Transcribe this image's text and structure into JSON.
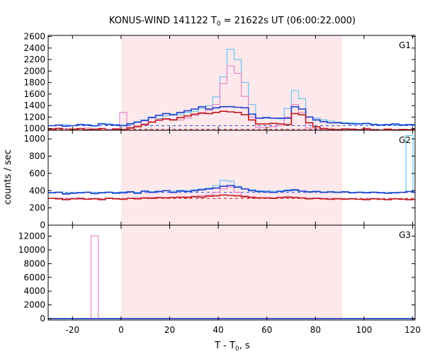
{
  "chart_data": {
    "type": "line",
    "title_main": "KONUS-WIND 141122 T",
    "title_sub": "0",
    "title_rest": " = 21622s UT (06:00:22.000)",
    "xlabel_main": "T - T",
    "xlabel_sub": "0",
    "xlabel_rest": ", s",
    "ylabel": "counts / sec",
    "xlim": [
      -30,
      121
    ],
    "x_ticks": [
      -20,
      0,
      20,
      40,
      60,
      80,
      100,
      120
    ],
    "highlight_interval": [
      0,
      91
    ],
    "colors": {
      "highlight": "#fde8ec",
      "cyan": "#5bc0eb",
      "pink": "#e27fbf",
      "blue": "#1c3fcf",
      "red": "#c01818",
      "dashed_blue": "#2a4fd6",
      "dashed_red": "#c01818"
    },
    "panels": [
      {
        "name": "G1",
        "ylim": [
          970,
          2620
        ],
        "y_ticks": [
          1000,
          1200,
          1400,
          1600,
          1800,
          2000,
          2200,
          2400,
          2600
        ],
        "bg_levels": {
          "blue": 1050,
          "red": 985
        },
        "bin_start": -30,
        "bin_width": 2.944,
        "series": [
          {
            "name": "cyan",
            "values": [
              1050,
              1060,
              1070,
              1050,
              1060,
              1070,
              1040,
              1090,
              1080,
              1070,
              1060,
              1090,
              1120,
              1150,
              1200,
              1180,
              1220,
              1250,
              1240,
              1280,
              1300,
              1350,
              1400,
              1550,
              1900,
              2380,
              2200,
              1800,
              1420,
              1180,
              1180,
              1180,
              1170,
              1350,
              1660,
              1520,
              1200,
              1180,
              1150,
              1130,
              1110,
              1100,
              1100,
              1090,
              1080,
              1080,
              1070,
              1060,
              1060,
              1070,
              1060,
              1070
            ]
          },
          {
            "name": "pink",
            "values": [
              1000,
              1010,
              1000,
              990,
              1000,
              1010,
              980,
              1000,
              990,
              1000,
              1280,
              1020,
              1050,
              1080,
              1120,
              1140,
              1160,
              1160,
              1150,
              1180,
              1230,
              1260,
              1320,
              1420,
              1780,
              2090,
              1960,
              1560,
              1200,
              1020,
              1020,
              1030,
              1050,
              1200,
              1420,
              1280,
              1010,
              1000,
              990,
              985,
              980,
              985,
              980,
              985,
              980,
              985,
              975,
              985,
              980,
              985,
              980,
              985
            ]
          },
          {
            "name": "blue",
            "values": [
              1050,
              1060,
              1040,
              1050,
              1070,
              1060,
              1050,
              1080,
              1070,
              1060,
              1050,
              1080,
              1110,
              1140,
              1190,
              1230,
              1260,
              1240,
              1280,
              1310,
              1340,
              1380,
              1340,
              1360,
              1380,
              1380,
              1370,
              1360,
              1250,
              1180,
              1190,
              1180,
              1180,
              1180,
              1380,
              1340,
              1200,
              1150,
              1120,
              1100,
              1100,
              1090,
              1080,
              1080,
              1090,
              1070,
              1060,
              1070,
              1080,
              1060,
              1070,
              1060
            ]
          },
          {
            "name": "red",
            "values": [
              990,
              1000,
              970,
              990,
              1000,
              980,
              990,
              1000,
              970,
              990,
              980,
              1010,
              1030,
              1070,
              1110,
              1150,
              1170,
              1150,
              1190,
              1220,
              1250,
              1270,
              1260,
              1280,
              1300,
              1290,
              1280,
              1240,
              1150,
              1080,
              1080,
              1090,
              1080,
              1070,
              1260,
              1240,
              1100,
              1030,
              1000,
              990,
              980,
              995,
              990,
              980,
              1000,
              980,
              970,
              990,
              975,
              985,
              980,
              990
            ]
          }
        ]
      },
      {
        "name": "G2",
        "ylim": [
          0,
          1100
        ],
        "y_ticks": [
          0,
          200,
          400,
          600,
          800,
          1000
        ],
        "bg_levels": {
          "blue": 380,
          "red": 310
        },
        "bin_start": -30,
        "bin_width": 2.944,
        "series": [
          {
            "name": "cyan",
            "values": [
              380,
              385,
              370,
              375,
              380,
              385,
              375,
              380,
              385,
              380,
              385,
              390,
              380,
              395,
              390,
              395,
              400,
              395,
              405,
              400,
              410,
              420,
              430,
              460,
              520,
              510,
              450,
              420,
              410,
              400,
              400,
              395,
              400,
              410,
              400,
              395,
              390,
              395,
              385,
              390,
              385,
              390,
              380,
              385,
              380,
              385,
              380,
              375,
              380,
              380,
              1040,
              380
            ]
          },
          {
            "name": "pink",
            "values": [
              310,
              315,
              305,
              310,
              300,
              305,
              310,
              305,
              315,
              310,
              305,
              310,
              315,
              310,
              320,
              315,
              320,
              325,
              320,
              330,
              335,
              340,
              350,
              380,
              420,
              440,
              380,
              340,
              330,
              320,
              320,
              315,
              325,
              330,
              325,
              315,
              310,
              315,
              310,
              305,
              310,
              305,
              310,
              300,
              305,
              310,
              305,
              300,
              305,
              300,
              300,
              300
            ]
          },
          {
            "name": "blue",
            "values": [
              375,
              380,
              360,
              370,
              375,
              380,
              365,
              375,
              380,
              370,
              375,
              385,
              370,
              395,
              380,
              390,
              400,
              380,
              395,
              390,
              400,
              410,
              420,
              430,
              450,
              460,
              440,
              420,
              400,
              390,
              385,
              380,
              390,
              400,
              410,
              395,
              385,
              390,
              380,
              385,
              380,
              385,
              375,
              380,
              375,
              380,
              375,
              370,
              375,
              380,
              390,
              380
            ]
          },
          {
            "name": "red",
            "values": [
              310,
              305,
              295,
              305,
              310,
              300,
              305,
              295,
              310,
              305,
              300,
              310,
              305,
              315,
              310,
              320,
              315,
              320,
              325,
              320,
              330,
              325,
              335,
              340,
              350,
              345,
              340,
              330,
              320,
              315,
              315,
              310,
              320,
              325,
              320,
              315,
              305,
              310,
              305,
              300,
              305,
              300,
              305,
              300,
              295,
              305,
              300,
              295,
              305,
              300,
              295,
              300
            ]
          }
        ]
      },
      {
        "name": "G3",
        "ylim": [
          -200,
          13600
        ],
        "y_ticks": [
          0,
          2000,
          4000,
          6000,
          8000,
          10000,
          12000
        ],
        "bin_start": -30,
        "bin_width": 2.944,
        "series": [
          {
            "name": "pink",
            "values": [
              0,
              0,
              0,
              0,
              0,
              0,
              12050,
              0,
              0,
              0,
              0,
              0,
              0,
              0,
              0,
              0,
              0,
              0,
              0,
              0,
              0,
              0,
              0,
              0,
              0,
              0,
              0,
              0,
              0,
              0,
              0,
              0,
              0,
              0,
              0,
              0,
              0,
              0,
              0,
              0,
              0,
              0,
              0,
              0,
              0,
              0,
              0,
              0,
              0,
              0,
              0,
              0
            ]
          },
          {
            "name": "blue",
            "values": [
              20,
              20,
              20,
              20,
              20,
              20,
              20,
              20,
              20,
              20,
              20,
              20,
              20,
              20,
              20,
              20,
              20,
              20,
              20,
              20,
              20,
              20,
              20,
              20,
              20,
              20,
              20,
              20,
              20,
              20,
              20,
              20,
              20,
              20,
              20,
              20,
              20,
              20,
              20,
              20,
              20,
              20,
              20,
              20,
              20,
              20,
              20,
              20,
              20,
              20,
              20,
              20
            ]
          }
        ]
      }
    ]
  }
}
